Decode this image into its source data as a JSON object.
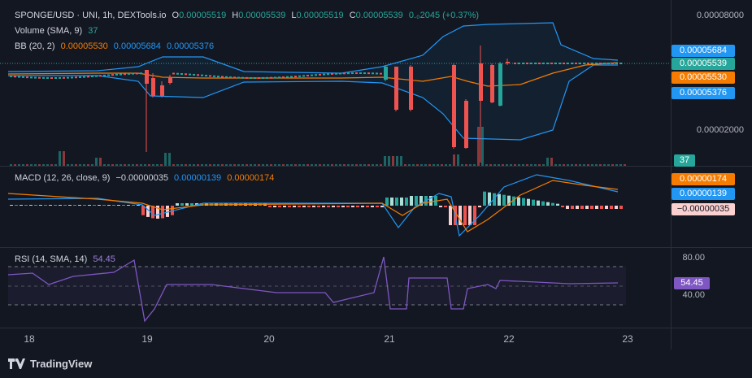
{
  "legend": {
    "title": "SPONGE/USD · UNI, 1h, DEXTools.io",
    "open_label": "O",
    "open": "0.00005519",
    "high_label": "H",
    "high": "0.00005539",
    "low_label": "L",
    "low": "0.00005519",
    "close_label": "C",
    "close": "0.00005539",
    "change": "0.₀2045 (+0.37%)",
    "volume_label": "Volume (SMA, 9)",
    "volume_value": "37",
    "bb_label": "BB (20, 2)",
    "bb_basis": "0.00005530",
    "bb_upper": "0.00005684",
    "bb_lower": "0.00005376"
  },
  "macd": {
    "label": "MACD (12, 26, close, 9)",
    "hist": "−0.00000035",
    "macd": "0.00000139",
    "signal": "0.00000174"
  },
  "rsi": {
    "label": "RSI (14, SMA, 14)",
    "value": "54.45"
  },
  "price_axis": {
    "ticks": [
      "0.00008000",
      "0.00002000"
    ],
    "badges": {
      "upper": "0.00005684",
      "current": "0.00005539",
      "basis": "0.00005530",
      "lower": "0.00005376",
      "volume": "37"
    }
  },
  "macd_axis": {
    "signal": "0.00000174",
    "macd": "0.00000139",
    "hist": "−0.00000035"
  },
  "rsi_axis": {
    "ticks": [
      "80.00",
      "40.00"
    ],
    "current": "54.45"
  },
  "time_axis": [
    "18",
    "19",
    "20",
    "21",
    "22",
    "23"
  ],
  "footer": {
    "brand": "TradingView"
  },
  "colors": {
    "up": "#26a69a",
    "down": "#ef5350",
    "bb_basis": "#f57c00",
    "bb_band": "#2196f3",
    "rsi": "#7e57c2",
    "background": "#131722"
  }
}
